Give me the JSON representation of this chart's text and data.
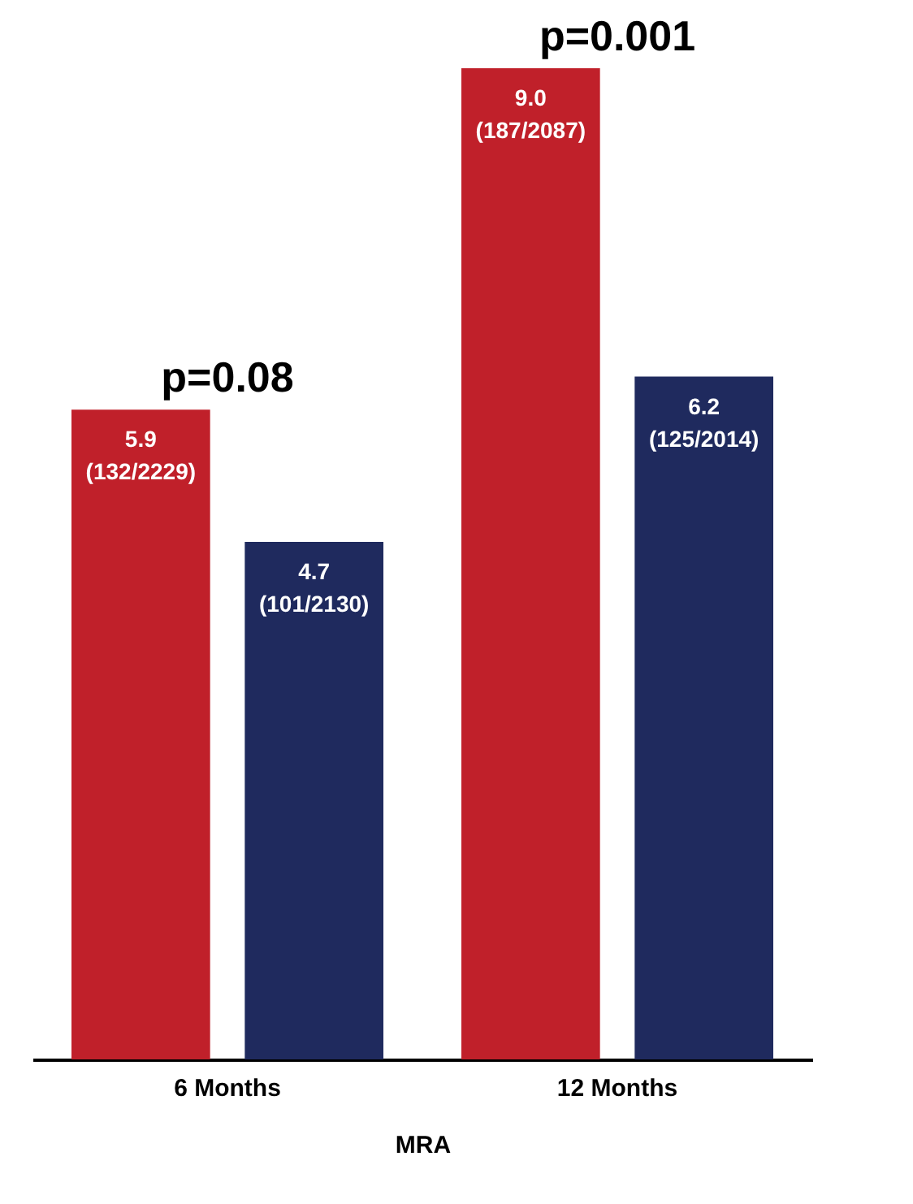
{
  "chart_data": {
    "type": "bar",
    "xlabel": "MRA",
    "categories": [
      "6 Months",
      "12 Months"
    ],
    "series": [
      {
        "color": "#c0202a",
        "values": [
          5.9,
          9.0
        ],
        "value_labels": [
          "5.9\n(132/2229)",
          "9.0\n(187/2087)"
        ]
      },
      {
        "color": "#1f2a5e",
        "values": [
          4.7,
          6.2
        ],
        "value_labels": [
          "4.7\n(101/2130)",
          "6.2\n(125/2014)"
        ]
      }
    ],
    "annotations": [
      "p=0.08",
      "p=0.001"
    ],
    "legend": false,
    "grid": false
  }
}
